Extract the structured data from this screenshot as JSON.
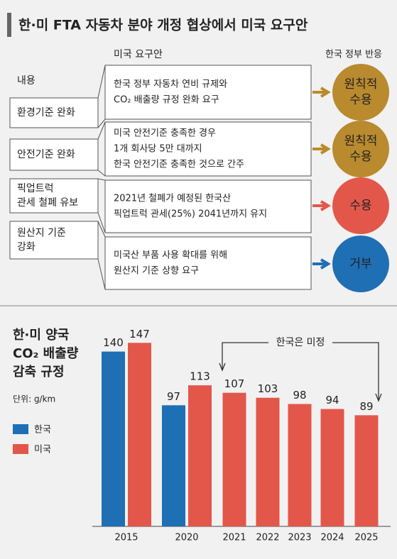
{
  "header": {
    "title": "한·미 FTA 자동차 분야 개정 협상에서 미국 요구안"
  },
  "table": {
    "col_headers": [
      "내용",
      "미국 요구안",
      "한국 정부 반응"
    ],
    "rows": [
      {
        "item": [
          "환경기준 완화"
        ],
        "demand": [
          "한국 정부 자동차 연비 규제와",
          "CO₂ 배출량 규정 완화 요구"
        ],
        "response": [
          "원칙적",
          "수용"
        ],
        "color": "#b98a2e"
      },
      {
        "item": [
          "안전기준 완화"
        ],
        "demand": [
          "미국 안전기준 충족한 경우",
          "1개 회사당 5만 대까지",
          "한국 안전기준 충족한 것으로 간주"
        ],
        "response": [
          "원칙적",
          "수용"
        ],
        "color": "#b98a2e"
      },
      {
        "item": [
          "픽업트럭",
          "관세 철폐 유보"
        ],
        "demand": [
          "2021년 철폐가 예정된 한국산",
          "픽업트럭 관세(25%) 2041년까지 유지"
        ],
        "response": [
          "수용"
        ],
        "color": "#e3574b"
      },
      {
        "item": [
          "원산지 기준",
          "강화"
        ],
        "demand": [
          "미국산 부품 사용 확대를 위해",
          "원산지 기준 상향 요구"
        ],
        "response": [
          "거부"
        ],
        "color": "#1f6fb4"
      }
    ]
  },
  "chart_data": {
    "type": "bar",
    "title": [
      "한·미 양국",
      "CO₂ 배출량",
      "감축 규정"
    ],
    "unit": "단위: g/km",
    "annotation": "한국은 미정",
    "categories": [
      "2015",
      "2020",
      "2021",
      "2022",
      "2023",
      "2024",
      "2025"
    ],
    "series": [
      {
        "name": "한국",
        "color": "#1f6fb4",
        "values": [
          140,
          97,
          null,
          null,
          null,
          null,
          null
        ]
      },
      {
        "name": "미국",
        "color": "#e3574b",
        "values": [
          147,
          113,
          107,
          103,
          98,
          94,
          89
        ]
      }
    ]
  }
}
